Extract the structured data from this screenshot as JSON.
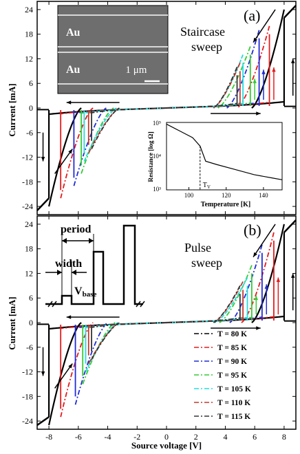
{
  "colors": {
    "80K": "#000000",
    "85K": "#e41a1c",
    "90K": "#1f2bd6",
    "95K": "#33cc33",
    "105K": "#22dddd",
    "110K": "#c0392b",
    "115K": "#333333",
    "sem_bg": "#6e6e6e"
  },
  "chart_data": [
    {
      "panel": "a",
      "type": "line",
      "panel_label": "(a)",
      "annotation_line1": "Staircase",
      "annotation_line2": "sweep",
      "xlabel": "",
      "ylabel": "Current [mA]",
      "xlim": [
        -8.8,
        8.8
      ],
      "ylim": [
        -26,
        26
      ],
      "yticks": [
        "24",
        "18",
        "12",
        "6",
        "0",
        "-6",
        "-12",
        "-18",
        "-24"
      ],
      "ytick_values": [
        24,
        18,
        12,
        6,
        0,
        -6,
        -12,
        -18,
        -24
      ],
      "series": [
        {
          "temp": "80K",
          "vneg": -8.0,
          "ineg": -22,
          "vpos": 8.0,
          "ipos": 22
        },
        {
          "temp": "85K",
          "vneg": -7.2,
          "ineg": -20,
          "vpos": 7.0,
          "ipos": 18
        },
        {
          "temp": "90K",
          "vneg": -6.3,
          "ineg": -17,
          "vpos": 6.3,
          "ipos": 17
        },
        {
          "temp": "95K",
          "vneg": -5.8,
          "ineg": -14,
          "vpos": 5.7,
          "ipos": 13
        },
        {
          "temp": "105K",
          "vneg": -5.6,
          "ineg": -11,
          "vpos": 5.2,
          "ipos": 11
        },
        {
          "temp": "110K",
          "vneg": -5.3,
          "ineg": -9,
          "vpos": 5.0,
          "ipos": 9
        },
        {
          "temp": "115K",
          "vneg": -5.1,
          "ineg": -8,
          "vpos": 4.8,
          "ipos": 8
        }
      ],
      "sem_inset": {
        "label_top": "Au",
        "label_bottom": "Au",
        "scale": "1 μm"
      },
      "resistance_inset": {
        "ylabel": "Resistance [log Ω]",
        "xlabel": "Temperature [K]",
        "xticks": [
          "100",
          "120",
          "140"
        ],
        "xtick_values": [
          100,
          120,
          140
        ],
        "yticks": [
          "10⁵",
          "10⁴",
          "10³"
        ],
        "xlim": [
          88,
          150
        ],
        "tv_label": "T",
        "tv_sub": "V",
        "tv_value": 106,
        "points": [
          [
            88,
            4.95
          ],
          [
            95,
            4.75
          ],
          [
            102,
            4.55
          ],
          [
            106,
            4.3
          ],
          [
            109,
            3.85
          ],
          [
            115,
            3.75
          ],
          [
            125,
            3.6
          ],
          [
            135,
            3.45
          ],
          [
            145,
            3.35
          ],
          [
            150,
            3.3
          ]
        ]
      }
    },
    {
      "panel": "b",
      "type": "line",
      "panel_label": "(b)",
      "annotation_line1": "Pulse",
      "annotation_line2": "sweep",
      "xlabel": "Source voltage [V]",
      "ylabel": "Current [mA]",
      "xlim": [
        -8.8,
        8.8
      ],
      "ylim": [
        -26,
        26
      ],
      "xticks": [
        "-8",
        "-6",
        "-4",
        "-2",
        "0",
        "2",
        "4",
        "6",
        "8"
      ],
      "xtick_values": [
        -8,
        -6,
        -4,
        -2,
        0,
        2,
        4,
        6,
        8
      ],
      "yticks": [
        "24",
        "18",
        "12",
        "6",
        "0",
        "-6",
        "-12",
        "-18",
        "-24"
      ],
      "ytick_values": [
        24,
        18,
        12,
        6,
        0,
        -6,
        -12,
        -18,
        -24
      ],
      "series": [
        {
          "temp": "80K",
          "vneg": -8.0,
          "ineg": -23,
          "vpos": 8.0,
          "ipos": 22
        },
        {
          "temp": "85K",
          "vneg": -7.2,
          "ineg": -21,
          "vpos": 7.3,
          "ipos": 20
        },
        {
          "temp": "90K",
          "vneg": -6.2,
          "ineg": -18,
          "vpos": 6.5,
          "ipos": 17
        },
        {
          "temp": "95K",
          "vneg": -5.7,
          "ineg": -13,
          "vpos": 5.8,
          "ipos": 12
        },
        {
          "temp": "105K",
          "vneg": -5.5,
          "ineg": -10,
          "vpos": 5.5,
          "ipos": 9
        },
        {
          "temp": "110K",
          "vneg": -5.3,
          "ineg": -8,
          "vpos": 5.2,
          "ipos": 8
        },
        {
          "temp": "115K",
          "vneg": -5.1,
          "ineg": -7,
          "vpos": 5.0,
          "ipos": 7
        }
      ],
      "pulse_inset": {
        "period": "period",
        "width": "width",
        "vbase": "V",
        "vbase_sub": "base"
      },
      "legend": {
        "placement": "bottom-right",
        "entries": [
          {
            "temp": "80K",
            "label": "T = 80 K"
          },
          {
            "temp": "85K",
            "label": "T = 85 K"
          },
          {
            "temp": "90K",
            "label": "T = 90 K"
          },
          {
            "temp": "95K",
            "label": "T = 95 K"
          },
          {
            "temp": "105K",
            "label": "T = 105 K"
          },
          {
            "temp": "110K",
            "label": "T = 110 K"
          },
          {
            "temp": "115K",
            "label": "T = 115 K"
          }
        ]
      }
    }
  ]
}
